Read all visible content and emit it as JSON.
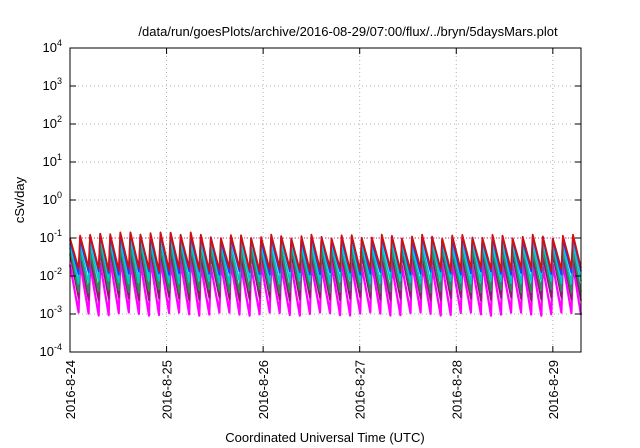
{
  "chart_data": {
    "type": "line",
    "title": "/data/run/goesPlots/archive/2016-08-29/07:00/flux/../bryn/5daysMars.plot",
    "xlabel": "Coordinated Universal Time (UTC)",
    "ylabel": "cSv/day",
    "y_scale": "log",
    "ylim": [
      0.0001,
      10000
    ],
    "y_ticks": [
      {
        "value": 0.0001,
        "base": "10",
        "exp": "-4"
      },
      {
        "value": 0.001,
        "base": "10",
        "exp": "-3"
      },
      {
        "value": 0.01,
        "base": "10",
        "exp": "-2"
      },
      {
        "value": 0.1,
        "base": "10",
        "exp": "-1"
      },
      {
        "value": 1,
        "base": "10",
        "exp": "0"
      },
      {
        "value": 10,
        "base": "10",
        "exp": "1"
      },
      {
        "value": 100,
        "base": "10",
        "exp": "2"
      },
      {
        "value": 1000,
        "base": "10",
        "exp": "3"
      },
      {
        "value": 10000,
        "base": "10",
        "exp": "4"
      }
    ],
    "xlim": [
      "2016-08-24T00:00",
      "2016-08-29T07:00"
    ],
    "x_ticks": [
      "2016-8-24",
      "2016-8-25",
      "2016-8-26",
      "2016-8-27",
      "2016-8-28",
      "2016-8-29"
    ],
    "grid": true,
    "reference_line": {
      "y": 0.1,
      "color": "#e0218a",
      "style": "dotted"
    },
    "cycle_hours": 2.5,
    "series": [
      {
        "color": "#ff00ff",
        "peak": 0.02,
        "trough": 0.001
      },
      {
        "color": "#8b1a6b",
        "peak": 0.035,
        "trough": 0.0025
      },
      {
        "color": "#2e8b57",
        "peak": 0.05,
        "trough": 0.004
      },
      {
        "color": "#00c8d0",
        "peak": 0.07,
        "trough": 0.007
      },
      {
        "color": "#1e3cff",
        "peak": 0.1,
        "trough": 0.012
      },
      {
        "color": "#d01010",
        "peak": 0.11,
        "trough": 0.015
      }
    ]
  }
}
